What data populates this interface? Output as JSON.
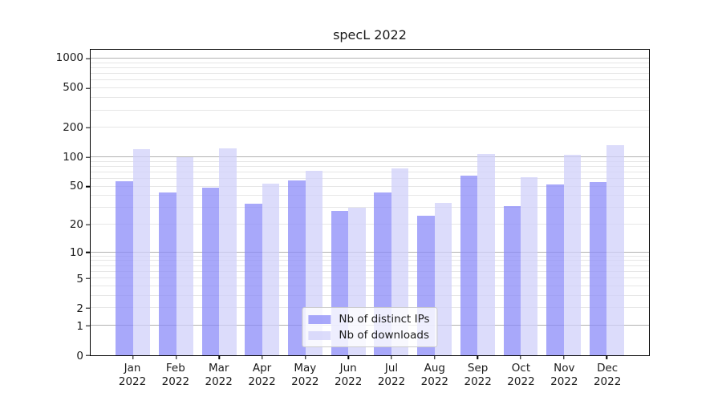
{
  "title": "specL 2022",
  "colors": {
    "ips_bar": "rgba(138,138,248,0.74)",
    "downloads_bar": "rgba(208,208,249,0.74)",
    "major_grid": "#b2b2b2",
    "minor_grid": "#e6e6e6",
    "spine": "#000000",
    "text": "#1a1a1a"
  },
  "legend": {
    "position": "lower center",
    "items": [
      {
        "key": "distinct-ips",
        "label": "Nb of distinct IPs",
        "color_key": "ips_bar"
      },
      {
        "key": "downloads",
        "label": "Nb of downloads",
        "color_key": "downloads_bar"
      }
    ]
  },
  "chart_data": {
    "type": "bar",
    "title": "specL 2022",
    "xlabel": "",
    "ylabel": "",
    "categories": [
      "Jan",
      "Feb",
      "Mar",
      "Apr",
      "May",
      "Jun",
      "Jul",
      "Aug",
      "Sep",
      "Oct",
      "Nov",
      "Dec"
    ],
    "category_year": "2022",
    "series": [
      {
        "key": "distinct-ips",
        "name": "Nb of distinct IPs",
        "values": [
          57,
          43,
          49,
          33,
          58,
          28,
          43,
          25,
          65,
          31,
          52,
          56
        ]
      },
      {
        "key": "downloads",
        "name": "Nb of downloads",
        "values": [
          121,
          100,
          123,
          53,
          73,
          30,
          76,
          34,
          108,
          62,
          106,
          133
        ]
      }
    ],
    "yscale": "log(1+y)",
    "ylim": [
      0,
      1232
    ],
    "y_ticks": [
      0,
      1,
      2,
      5,
      10,
      20,
      50,
      100,
      200,
      500,
      1000
    ],
    "major_gridlines": [
      1,
      10,
      100,
      1000
    ],
    "minor_gridlines": [
      2,
      3,
      4,
      5,
      6,
      7,
      8,
      9,
      20,
      30,
      40,
      50,
      60,
      70,
      80,
      90,
      200,
      300,
      400,
      500,
      600,
      700,
      800,
      900
    ],
    "grid": true,
    "legend_position": "lower center"
  }
}
